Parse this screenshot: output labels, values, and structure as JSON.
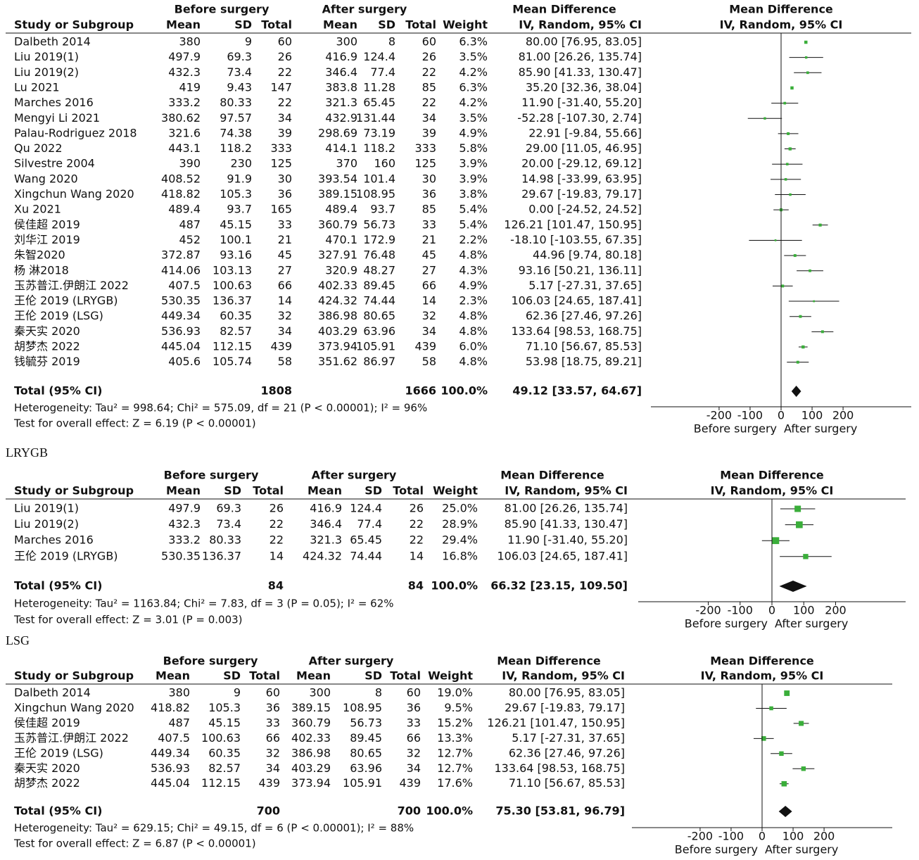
{
  "chart_data": [
    {
      "type": "forest",
      "color": "#3aae3a",
      "group_headers": [
        "Before surgery",
        "After surgery",
        "Mean Difference",
        "Mean Difference"
      ],
      "column_headers": [
        "Study or Subgroup",
        "Mean",
        "SD",
        "Total",
        "Mean",
        "SD",
        "Total",
        "Weight",
        "IV, Random, 95% CI",
        "IV, Random, 95% CI"
      ],
      "studies": [
        "Dalbeth 2014",
        "Liu 2019(1)",
        "Liu 2019(2)",
        "Lu 2021",
        "Marches 2016",
        "Mengyi Li 2021",
        "Palau-Rodriguez 2018",
        "Qu 2022",
        "Silvestre 2004",
        "Wang 2020",
        "Xingchun Wang 2020",
        "Xu 2021",
        "侯佳超 2019",
        "刘华江 2019",
        "朱智2020",
        "杨 淋2018",
        "玉苏普江.伊朗江 2022",
        "王伦 2019 (LRYGB)",
        "王伦 2019 (LSG)",
        "秦天实 2020",
        "胡梦杰 2022",
        "钱毓芬 2019"
      ],
      "before_mean": [
        380,
        497.9,
        432.3,
        419,
        333.2,
        380.62,
        321.6,
        443.1,
        390,
        408.52,
        418.82,
        489.4,
        487,
        452,
        372.87,
        414.06,
        407.5,
        530.35,
        449.34,
        536.93,
        445.04,
        405.6
      ],
      "before_sd": [
        9,
        69.3,
        73.4,
        9.43,
        80.33,
        97.57,
        74.38,
        118.2,
        230,
        91.9,
        105.3,
        93.7,
        45.15,
        100.1,
        93.16,
        103.13,
        100.63,
        136.37,
        60.35,
        82.57,
        112.15,
        105.74
      ],
      "before_total": [
        60,
        26,
        22,
        147,
        22,
        34,
        39,
        333,
        125,
        30,
        36,
        165,
        33,
        21,
        45,
        27,
        66,
        14,
        32,
        34,
        439,
        58
      ],
      "after_mean": [
        300,
        416.9,
        346.4,
        383.8,
        321.3,
        432.9,
        298.69,
        414.1,
        370,
        393.54,
        389.15,
        489.4,
        360.79,
        470.1,
        327.91,
        320.9,
        402.33,
        424.32,
        386.98,
        403.29,
        373.94,
        351.62
      ],
      "after_sd": [
        8,
        124.4,
        77.4,
        11.28,
        65.45,
        131.44,
        73.19,
        118.2,
        160,
        101.4,
        108.95,
        93.7,
        56.73,
        172.9,
        76.48,
        48.27,
        89.45,
        74.44,
        80.65,
        63.96,
        105.91,
        86.97
      ],
      "after_total": [
        60,
        26,
        22,
        85,
        22,
        34,
        39,
        333,
        125,
        30,
        36,
        85,
        33,
        21,
        45,
        27,
        66,
        14,
        32,
        34,
        439,
        58
      ],
      "weights": [
        6.3,
        3.5,
        4.2,
        6.3,
        4.2,
        3.5,
        4.9,
        5.8,
        3.9,
        3.9,
        3.8,
        5.4,
        5.4,
        2.2,
        4.8,
        4.3,
        4.9,
        2.3,
        4.8,
        4.8,
        6.0,
        4.8
      ],
      "weight_labels": [
        "6.3%",
        "3.5%",
        "4.2%",
        "6.3%",
        "4.2%",
        "3.5%",
        "4.9%",
        "5.8%",
        "3.9%",
        "3.9%",
        "3.8%",
        "5.4%",
        "5.4%",
        "2.2%",
        "4.8%",
        "4.3%",
        "4.9%",
        "2.3%",
        "4.8%",
        "4.8%",
        "6.0%",
        "4.8%"
      ],
      "md": [
        80.0,
        81.0,
        85.9,
        35.2,
        11.9,
        -52.28,
        22.91,
        29.0,
        20.0,
        14.98,
        29.67,
        0.0,
        126.21,
        -18.1,
        44.96,
        93.16,
        5.17,
        106.03,
        62.36,
        133.64,
        71.1,
        53.98
      ],
      "ci_low": [
        76.95,
        26.26,
        41.33,
        32.36,
        -31.4,
        -107.3,
        -9.84,
        11.05,
        -29.12,
        -33.99,
        -19.83,
        -24.52,
        101.47,
        -103.55,
        9.74,
        50.21,
        -27.31,
        24.65,
        27.46,
        98.53,
        56.67,
        18.75
      ],
      "ci_high": [
        83.05,
        135.74,
        130.47,
        38.04,
        55.2,
        2.74,
        55.66,
        46.95,
        69.12,
        63.95,
        79.17,
        24.52,
        150.95,
        67.35,
        80.18,
        136.11,
        37.65,
        187.41,
        97.26,
        168.75,
        85.53,
        89.21
      ],
      "md_labels": [
        "80.00 [76.95, 83.05]",
        "81.00 [26.26, 135.74]",
        "85.90 [41.33, 130.47]",
        "35.20 [32.36, 38.04]",
        "11.90 [-31.40, 55.20]",
        "-52.28 [-107.30, 2.74]",
        "22.91 [-9.84, 55.66]",
        "29.00 [11.05, 46.95]",
        "20.00 [-29.12, 69.12]",
        "14.98 [-33.99, 63.95]",
        "29.67 [-19.83, 79.17]",
        "0.00 [-24.52, 24.52]",
        "126.21 [101.47, 150.95]",
        "-18.10 [-103.55, 67.35]",
        "44.96 [9.74, 80.18]",
        "93.16 [50.21, 136.11]",
        "5.17 [-27.31, 37.65]",
        "106.03 [24.65, 187.41]",
        "62.36 [27.46, 97.26]",
        "133.64 [98.53, 168.75]",
        "71.10 [56.67, 85.53]",
        "53.98 [18.75, 89.21]"
      ],
      "total": {
        "label": "Total (95% CI)",
        "before_total": 1808,
        "after_total": 1666,
        "weight_label": "100.0%",
        "md": 49.12,
        "ci_low": 33.57,
        "ci_high": 64.67,
        "md_label": "49.12 [33.57, 64.67]"
      },
      "heterogeneity": "Heterogeneity: Tau² = 998.64; Chi² = 575.09, df = 21 (P < 0.00001); I² = 96%",
      "overall_effect": "Test for overall effect: Z = 6.19 (P < 0.00001)",
      "xlim": [
        -420,
        420
      ],
      "xticks": [
        -200,
        -100,
        0,
        100,
        200
      ],
      "xlabel_left": "Before surgery",
      "xlabel_right": "After surgery"
    },
    {
      "type": "forest",
      "title": "LRYGB",
      "color": "#3aae3a",
      "group_headers": [
        "Before surgery",
        "After surgery",
        "Mean Difference",
        "Mean Difference"
      ],
      "column_headers": [
        "Study or Subgroup",
        "Mean",
        "SD",
        "Total",
        "Mean",
        "SD",
        "Total",
        "Weight",
        "IV, Random, 95% CI",
        "IV, Random, 95% CI"
      ],
      "studies": [
        "Liu 2019(1)",
        "Liu 2019(2)",
        "Marches 2016",
        "王伦 2019 (LRYGB)"
      ],
      "before_mean": [
        497.9,
        432.3,
        333.2,
        530.35
      ],
      "before_sd": [
        69.3,
        73.4,
        80.33,
        136.37
      ],
      "before_total": [
        26,
        22,
        22,
        14
      ],
      "after_mean": [
        416.9,
        346.4,
        321.3,
        424.32
      ],
      "after_sd": [
        124.4,
        77.4,
        65.45,
        74.44
      ],
      "after_total": [
        26,
        22,
        22,
        14
      ],
      "weights": [
        25.0,
        28.9,
        29.4,
        16.8
      ],
      "weight_labels": [
        "25.0%",
        "28.9%",
        "29.4%",
        "16.8%"
      ],
      "md": [
        81.0,
        85.9,
        11.9,
        106.03
      ],
      "ci_low": [
        26.26,
        41.33,
        -31.4,
        24.65
      ],
      "ci_high": [
        135.74,
        130.47,
        55.2,
        187.41
      ],
      "md_labels": [
        "81.00 [26.26, 135.74]",
        "85.90 [41.33, 130.47]",
        "11.90 [-31.40, 55.20]",
        "106.03 [24.65, 187.41]"
      ],
      "total": {
        "label": "Total (95% CI)",
        "before_total": 84,
        "after_total": 84,
        "weight_label": "100.0%",
        "md": 66.32,
        "ci_low": 23.15,
        "ci_high": 109.5,
        "md_label": "66.32 [23.15, 109.50]"
      },
      "heterogeneity": "Heterogeneity: Tau² = 1163.84; Chi² = 7.83, df = 3 (P = 0.05); I² = 62%",
      "overall_effect": "Test for overall effect: Z = 3.01 (P = 0.003)",
      "xlim": [
        -420,
        420
      ],
      "xticks": [
        -200,
        -100,
        0,
        100,
        200
      ],
      "xlabel_left": "Before surgery",
      "xlabel_right": "After surgery"
    },
    {
      "type": "forest",
      "title": "LSG",
      "color": "#3aae3a",
      "group_headers": [
        "Before surgery",
        "After surgery",
        "Mean Difference",
        "Mean Difference"
      ],
      "column_headers": [
        "Study or Subgroup",
        "Mean",
        "SD",
        "Total",
        "Mean",
        "SD",
        "Total",
        "Weight",
        "IV, Random, 95% CI",
        "IV, Random, 95% CI"
      ],
      "studies": [
        "Dalbeth 2014",
        "Xingchun Wang 2020",
        "侯佳超 2019",
        "玉苏普江.伊朗江 2022",
        "王伦 2019 (LSG)",
        "秦天实 2020",
        "胡梦杰 2022"
      ],
      "before_mean": [
        380,
        418.82,
        487,
        407.5,
        449.34,
        536.93,
        445.04
      ],
      "before_sd": [
        9,
        105.3,
        45.15,
        100.63,
        60.35,
        82.57,
        112.15
      ],
      "before_total": [
        60,
        36,
        33,
        66,
        32,
        34,
        439
      ],
      "after_mean": [
        300,
        389.15,
        360.79,
        402.33,
        386.98,
        403.29,
        373.94
      ],
      "after_sd": [
        8,
        108.95,
        56.73,
        89.45,
        80.65,
        63.96,
        105.91
      ],
      "after_total": [
        60,
        36,
        33,
        66,
        32,
        34,
        439
      ],
      "weights": [
        19.0,
        9.5,
        15.2,
        13.3,
        12.7,
        12.7,
        17.6
      ],
      "weight_labels": [
        "19.0%",
        "9.5%",
        "15.2%",
        "13.3%",
        "12.7%",
        "12.7%",
        "17.6%"
      ],
      "md": [
        80.0,
        29.67,
        126.21,
        5.17,
        62.36,
        133.64,
        71.1
      ],
      "ci_low": [
        76.95,
        -19.83,
        101.47,
        -27.31,
        27.46,
        98.53,
        56.67
      ],
      "ci_high": [
        83.05,
        79.17,
        150.95,
        37.65,
        97.26,
        168.75,
        85.53
      ],
      "md_labels": [
        "80.00 [76.95, 83.05]",
        "29.67 [-19.83, 79.17]",
        "126.21 [101.47, 150.95]",
        "5.17 [-27.31, 37.65]",
        "62.36 [27.46, 97.26]",
        "133.64 [98.53, 168.75]",
        "71.10 [56.67, 85.53]"
      ],
      "total": {
        "label": "Total (95% CI)",
        "before_total": 700,
        "after_total": 700,
        "weight_label": "100.0%",
        "md": 75.3,
        "ci_low": 53.81,
        "ci_high": 96.79,
        "md_label": "75.30 [53.81, 96.79]"
      },
      "heterogeneity": "Heterogeneity: Tau² = 629.15; Chi² = 49.15, df = 6 (P < 0.00001); I² = 88%",
      "overall_effect": "Test for overall effect: Z = 6.87 (P < 0.00001)",
      "xlim": [
        -420,
        420
      ],
      "xticks": [
        -200,
        -100,
        0,
        100,
        200
      ],
      "xlabel_left": "Before surgery",
      "xlabel_right": "After surgery"
    }
  ]
}
